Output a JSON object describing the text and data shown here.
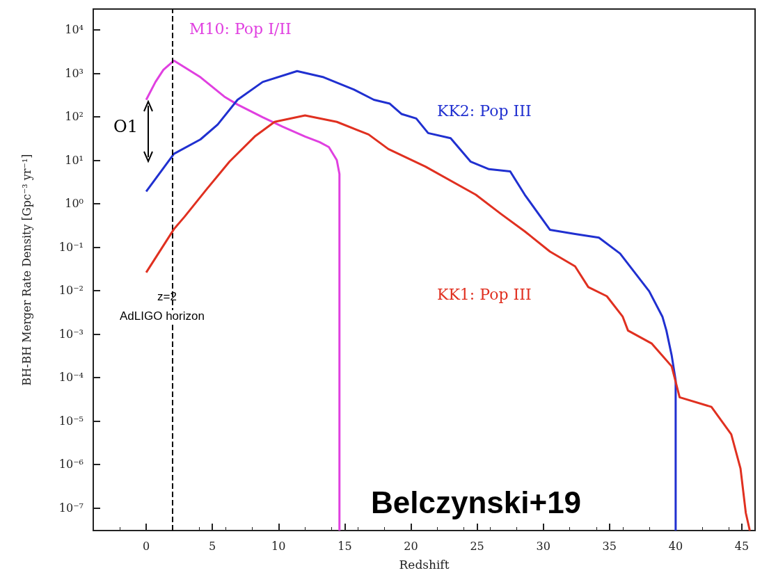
{
  "chart_data": {
    "type": "line",
    "xlabel": "Redshift",
    "ylabel": "BH-BH Merger Rate Density [Gpc⁻³ yr⁻¹]",
    "log": "y",
    "grid": false,
    "legend": false,
    "marker": "none",
    "line_style": "solid",
    "xlim": [
      -4,
      46
    ],
    "xticks": [
      0,
      5,
      10,
      15,
      20,
      25,
      30,
      35,
      40,
      45
    ],
    "ylim": [
      3e-08,
      30000
    ],
    "yticks": [
      {
        "value": 1e-07,
        "label": "10⁻⁷"
      },
      {
        "value": 1e-06,
        "label": "10⁻⁶"
      },
      {
        "value": 1e-05,
        "label": "10⁻⁵"
      },
      {
        "value": 0.0001,
        "label": "10⁻⁴"
      },
      {
        "value": 0.001,
        "label": "10⁻³"
      },
      {
        "value": 0.01,
        "label": "10⁻²"
      },
      {
        "value": 0.1,
        "label": "10⁻¹"
      },
      {
        "value": 1,
        "label": "10⁰"
      },
      {
        "value": 10,
        "label": "10¹"
      },
      {
        "value": 100,
        "label": "10²"
      },
      {
        "value": 1000,
        "label": "10³"
      },
      {
        "value": 10000,
        "label": "10⁴"
      }
    ],
    "series": [
      {
        "name": "M10: Pop I/II",
        "color": "#e040e0",
        "x": [
          0,
          0.7,
          1.3,
          2.1,
          4.1,
          5.9,
          6.9,
          8.8,
          10.3,
          12.0,
          13.1,
          13.8,
          14.4,
          14.6,
          14.6
        ],
        "values": [
          245,
          630,
          1200,
          1950,
          810,
          290,
          190,
          97,
          59,
          35,
          26,
          20,
          10,
          4.8,
          3e-08
        ]
      },
      {
        "name": "KK2: Pop III",
        "color": "#2030d0",
        "x": [
          0,
          2.1,
          4.1,
          5.4,
          6.9,
          8.8,
          11.4,
          13.4,
          15.7,
          17.2,
          18.4,
          19.3,
          20.4,
          21.3,
          23.0,
          24.5,
          25.9,
          27.5,
          28.6,
          30.5,
          32.4,
          34.2,
          35.8,
          38.0,
          39.0,
          39.3,
          39.7,
          40,
          40
        ],
        "values": [
          1.9,
          14,
          30,
          66,
          245,
          630,
          1120,
          810,
          420,
          245,
          200,
          115,
          91,
          42,
          32,
          9.3,
          6.2,
          5.5,
          1.6,
          0.25,
          0.2,
          0.165,
          0.071,
          0.0096,
          0.0025,
          0.0012,
          0.00032,
          8.5e-05,
          3e-08
        ]
      },
      {
        "name": "KK1: Pop III",
        "color": "#e03020",
        "x": [
          0,
          2.1,
          2.9,
          4.6,
          6.3,
          8.2,
          9.7,
          12.0,
          14.4,
          16.8,
          18.3,
          21.1,
          24.9,
          26.8,
          28.6,
          30.5,
          32.4,
          33.4,
          34.8,
          36.0,
          36.4,
          38.2,
          39.7,
          40.3,
          42.7,
          44.2,
          44.9,
          45.3,
          45.6
        ],
        "values": [
          0.026,
          0.26,
          0.5,
          2.2,
          9.3,
          35,
          76,
          107,
          76,
          39,
          18,
          7.1,
          1.6,
          0.58,
          0.23,
          0.079,
          0.036,
          0.012,
          0.0074,
          0.0025,
          0.0012,
          0.0006,
          0.00018,
          3.5e-05,
          2.1e-05,
          4.9e-06,
          8e-07,
          7.6e-08,
          3e-08
        ]
      }
    ],
    "ref_lines": [
      {
        "axis": "x",
        "value": 2,
        "label": "z=2",
        "color": "#000000",
        "line_style": "dashed"
      }
    ],
    "annotations": [
      "O1",
      "AdLIGO horizon",
      "Belczynski+19"
    ]
  }
}
